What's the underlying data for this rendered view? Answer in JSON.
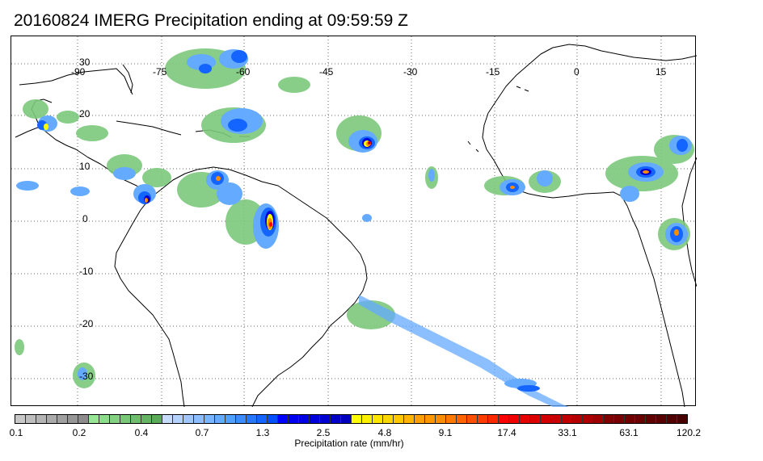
{
  "title": "20160824 IMERG Precipitation ending at 09:59:59 Z",
  "map": {
    "lon_labels": [
      "-90",
      "-75",
      "-60",
      "-45",
      "-30",
      "-15",
      "0",
      "15"
    ],
    "lat_labels": [
      "30",
      "20",
      "10",
      "0",
      "-10",
      "-20",
      "-30"
    ],
    "grid": "dotted",
    "coastline_color": "#000000"
  },
  "colorbar": {
    "label": "Precipitation rate (mm/hr)",
    "ticks": [
      "0.1",
      "0.2",
      "0.4",
      "0.7",
      "1.3",
      "2.5",
      "4.8",
      "9.1",
      "17.4",
      "33.1",
      "63.1",
      "120.2"
    ],
    "colors": [
      "#c8c8c8",
      "#bebebe",
      "#b4b4b4",
      "#aaaaaa",
      "#a0a0a0",
      "#969696",
      "#8c8c8c",
      "#96e696",
      "#8cdc8c",
      "#82d282",
      "#78c878",
      "#6ebe6e",
      "#64b464",
      "#5aaa5a",
      "#c8dcff",
      "#b4d2ff",
      "#a0c8ff",
      "#8cbeff",
      "#78b4ff",
      "#64aaff",
      "#50a0ff",
      "#3c8cff",
      "#2878ff",
      "#1464ff",
      "#0050ff",
      "#0000ff",
      "#0000f0",
      "#0000e6",
      "#0000dc",
      "#0000d2",
      "#0000c8",
      "#0000be",
      "#ffff00",
      "#fff000",
      "#ffe600",
      "#ffd700",
      "#ffc800",
      "#ffb400",
      "#ffa000",
      "#ff9600",
      "#ff8c00",
      "#ff7800",
      "#ff6400",
      "#ff5000",
      "#ff3c00",
      "#ff2800",
      "#ff0000",
      "#f00000",
      "#e60000",
      "#dc0000",
      "#d20000",
      "#c80000",
      "#be0000",
      "#b40000",
      "#aa0000",
      "#a00000",
      "#800000",
      "#780000",
      "#700000",
      "#680000",
      "#600000",
      "#580000",
      "#500000",
      "#480000"
    ]
  },
  "rain_colors": [
    "#7cc87c",
    "#64aaff",
    "#1464ff",
    "#0000d2",
    "#ffff00",
    "#ff8c00",
    "#ff0000",
    "#800000"
  ]
}
